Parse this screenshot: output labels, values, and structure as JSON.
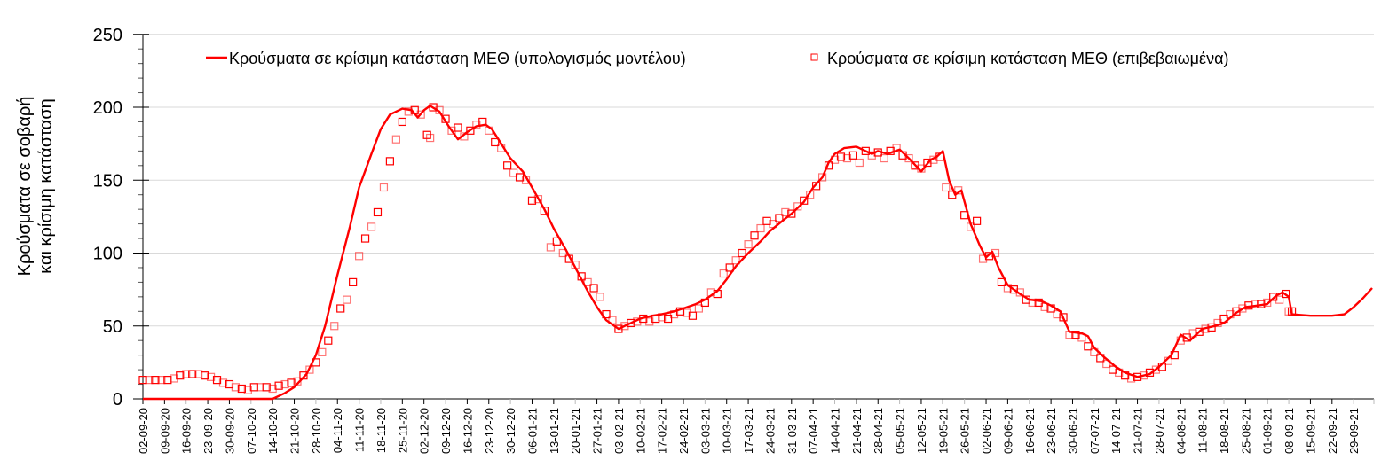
{
  "chart_data": {
    "type": "line",
    "title": "",
    "xlabel": "",
    "ylabel": "Κρούσματα σε σοβαρή και κρίσιμη κατάσταση",
    "ylabel_lines": [
      "Κρούσματα σε σοβαρή",
      "και κρίσιμη κατάσταση"
    ],
    "ylim": [
      0,
      250
    ],
    "yticks": [
      0,
      50,
      100,
      150,
      200,
      250
    ],
    "y_minor_step": 10,
    "grid": "horizontal major",
    "legend_position": "top inside",
    "x_unit": "days since 02-09-20",
    "xlim_days": [
      0,
      399
    ],
    "x_tick_step_days": 7,
    "x_tick_labels": [
      "02-09-20",
      "09-09-20",
      "16-09-20",
      "23-09-20",
      "30-09-20",
      "07-10-20",
      "14-10-20",
      "21-10-20",
      "28-10-20",
      "04-11-20",
      "11-11-20",
      "18-11-20",
      "25-11-20",
      "02-12-20",
      "09-12-20",
      "16-12-20",
      "23-12-20",
      "30-12-20",
      "06-01-21",
      "13-01-21",
      "20-01-21",
      "27-01-21",
      "03-02-21",
      "10-02-21",
      "17-02-21",
      "24-02-21",
      "03-03-21",
      "10-03-21",
      "17-03-21",
      "24-03-21",
      "31-03-21",
      "07-04-21",
      "14-04-21",
      "21-04-21",
      "28-04-21",
      "05-05-21",
      "12-05-21",
      "19-05-21",
      "26-05-21",
      "02-06-21",
      "09-06-21",
      "16-06-21",
      "23-06-21",
      "30-06-21",
      "07-07-21",
      "14-07-21",
      "21-07-21",
      "28-07-21",
      "04-08-21",
      "11-08-21",
      "18-08-21",
      "25-08-21",
      "01-09-21",
      "08-09-21",
      "15-09-21",
      "22-09-21",
      "29-09-21"
    ],
    "series": [
      {
        "name": "Κρούσματα σε κρίσιμη κατάσταση ΜΕΘ (υπολογισμός μοντέλου)",
        "style": "line",
        "color": "#ff0000",
        "points": [
          [
            0,
            0
          ],
          [
            42,
            0
          ],
          [
            46,
            4
          ],
          [
            49,
            8
          ],
          [
            53,
            17
          ],
          [
            56,
            30
          ],
          [
            59,
            50
          ],
          [
            63,
            85
          ],
          [
            67,
            118
          ],
          [
            70,
            145
          ],
          [
            74,
            168
          ],
          [
            77,
            185
          ],
          [
            80,
            195
          ],
          [
            84,
            199
          ],
          [
            87,
            198
          ],
          [
            89,
            193
          ],
          [
            91,
            198
          ],
          [
            93,
            201
          ],
          [
            96,
            197
          ],
          [
            99,
            187
          ],
          [
            102,
            178
          ],
          [
            105,
            183
          ],
          [
            108,
            187
          ],
          [
            111,
            188
          ],
          [
            113,
            185
          ],
          [
            116,
            175
          ],
          [
            119,
            165
          ],
          [
            123,
            156
          ],
          [
            126,
            145
          ],
          [
            130,
            130
          ],
          [
            133,
            117
          ],
          [
            137,
            102
          ],
          [
            140,
            90
          ],
          [
            144,
            74
          ],
          [
            147,
            63
          ],
          [
            150,
            54
          ],
          [
            154,
            48
          ],
          [
            157,
            51
          ],
          [
            161,
            55
          ],
          [
            165,
            57
          ],
          [
            168,
            58
          ],
          [
            172,
            60
          ],
          [
            175,
            62
          ],
          [
            179,
            65
          ],
          [
            182,
            68
          ],
          [
            186,
            74
          ],
          [
            189,
            82
          ],
          [
            192,
            91
          ],
          [
            196,
            100
          ],
          [
            200,
            108
          ],
          [
            203,
            115
          ],
          [
            207,
            122
          ],
          [
            210,
            127
          ],
          [
            214,
            135
          ],
          [
            217,
            145
          ],
          [
            220,
            152
          ],
          [
            222,
            162
          ],
          [
            224,
            168
          ],
          [
            227,
            172
          ],
          [
            231,
            173
          ],
          [
            234,
            170
          ],
          [
            236,
            168
          ],
          [
            238,
            170
          ],
          [
            241,
            168
          ],
          [
            245,
            171
          ],
          [
            248,
            165
          ],
          [
            252,
            156
          ],
          [
            255,
            164
          ],
          [
            257,
            166
          ],
          [
            259,
            170
          ],
          [
            261,
            150
          ],
          [
            263,
            140
          ],
          [
            265,
            143
          ],
          [
            268,
            120
          ],
          [
            271,
            105
          ],
          [
            273,
            97
          ],
          [
            275,
            101
          ],
          [
            277,
            90
          ],
          [
            280,
            78
          ],
          [
            284,
            72
          ],
          [
            287,
            68
          ],
          [
            291,
            67
          ],
          [
            294,
            64
          ],
          [
            297,
            60
          ],
          [
            300,
            46
          ],
          [
            304,
            45
          ],
          [
            306,
            43
          ],
          [
            308,
            35
          ],
          [
            311,
            29
          ],
          [
            315,
            22
          ],
          [
            318,
            18
          ],
          [
            322,
            15
          ],
          [
            326,
            17
          ],
          [
            329,
            22
          ],
          [
            333,
            30
          ],
          [
            336,
            44
          ],
          [
            339,
            40
          ],
          [
            343,
            48
          ],
          [
            347,
            50
          ],
          [
            350,
            52
          ],
          [
            354,
            59
          ],
          [
            357,
            63
          ],
          [
            361,
            64
          ],
          [
            364,
            65
          ],
          [
            367,
            71
          ],
          [
            369,
            73
          ],
          [
            371,
            70
          ],
          [
            372,
            58
          ],
          [
            378,
            57
          ],
          [
            385,
            57
          ],
          [
            389,
            58
          ],
          [
            392,
            63
          ],
          [
            395,
            69
          ],
          [
            398,
            76
          ]
        ]
      },
      {
        "name": "Κρούσματα σε κρίσιμη κατάσταση ΜΕΘ (επιβεβαιωμένα)",
        "style": "open-square markers",
        "color": "#ff0000",
        "points": [
          [
            0,
            13
          ],
          [
            2,
            13
          ],
          [
            4,
            13
          ],
          [
            6,
            13
          ],
          [
            8,
            13
          ],
          [
            10,
            14
          ],
          [
            12,
            16
          ],
          [
            14,
            17
          ],
          [
            16,
            17
          ],
          [
            18,
            17
          ],
          [
            20,
            16
          ],
          [
            22,
            15
          ],
          [
            24,
            13
          ],
          [
            26,
            11
          ],
          [
            28,
            10
          ],
          [
            30,
            8
          ],
          [
            32,
            7
          ],
          [
            34,
            6
          ],
          [
            36,
            8
          ],
          [
            38,
            8
          ],
          [
            40,
            8
          ],
          [
            42,
            7
          ],
          [
            44,
            9
          ],
          [
            46,
            10
          ],
          [
            48,
            11
          ],
          [
            50,
            12
          ],
          [
            52,
            16
          ],
          [
            54,
            20
          ],
          [
            56,
            25
          ],
          [
            58,
            32
          ],
          [
            60,
            40
          ],
          [
            62,
            50
          ],
          [
            64,
            62
          ],
          [
            66,
            68
          ],
          [
            68,
            80
          ],
          [
            70,
            98
          ],
          [
            72,
            110
          ],
          [
            74,
            118
          ],
          [
            76,
            128
          ],
          [
            78,
            145
          ],
          [
            80,
            163
          ],
          [
            82,
            178
          ],
          [
            84,
            190
          ],
          [
            86,
            197
          ],
          [
            88,
            198
          ],
          [
            90,
            195
          ],
          [
            92,
            181
          ],
          [
            93,
            179
          ],
          [
            94,
            200
          ],
          [
            96,
            198
          ],
          [
            98,
            192
          ],
          [
            100,
            184
          ],
          [
            102,
            186
          ],
          [
            104,
            180
          ],
          [
            106,
            184
          ],
          [
            108,
            188
          ],
          [
            110,
            190
          ],
          [
            112,
            184
          ],
          [
            114,
            176
          ],
          [
            116,
            172
          ],
          [
            118,
            160
          ],
          [
            120,
            155
          ],
          [
            122,
            152
          ],
          [
            124,
            150
          ],
          [
            126,
            136
          ],
          [
            128,
            137
          ],
          [
            130,
            129
          ],
          [
            132,
            104
          ],
          [
            134,
            108
          ],
          [
            136,
            100
          ],
          [
            138,
            96
          ],
          [
            140,
            92
          ],
          [
            142,
            84
          ],
          [
            144,
            80
          ],
          [
            146,
            76
          ],
          [
            148,
            70
          ],
          [
            150,
            58
          ],
          [
            152,
            54
          ],
          [
            154,
            48
          ],
          [
            156,
            50
          ],
          [
            158,
            52
          ],
          [
            160,
            53
          ],
          [
            162,
            55
          ],
          [
            164,
            53
          ],
          [
            166,
            55
          ],
          [
            168,
            56
          ],
          [
            170,
            55
          ],
          [
            172,
            58
          ],
          [
            174,
            60
          ],
          [
            176,
            59
          ],
          [
            178,
            57
          ],
          [
            180,
            62
          ],
          [
            182,
            66
          ],
          [
            184,
            73
          ],
          [
            186,
            72
          ],
          [
            188,
            86
          ],
          [
            190,
            90
          ],
          [
            192,
            95
          ],
          [
            194,
            100
          ],
          [
            196,
            106
          ],
          [
            198,
            112
          ],
          [
            200,
            117
          ],
          [
            202,
            122
          ],
          [
            204,
            120
          ],
          [
            206,
            124
          ],
          [
            208,
            128
          ],
          [
            210,
            127
          ],
          [
            212,
            132
          ],
          [
            214,
            136
          ],
          [
            216,
            140
          ],
          [
            218,
            146
          ],
          [
            220,
            152
          ],
          [
            222,
            160
          ],
          [
            224,
            164
          ],
          [
            226,
            166
          ],
          [
            228,
            165
          ],
          [
            230,
            167
          ],
          [
            232,
            162
          ],
          [
            234,
            170
          ],
          [
            236,
            167
          ],
          [
            238,
            169
          ],
          [
            240,
            165
          ],
          [
            242,
            170
          ],
          [
            244,
            172
          ],
          [
            246,
            167
          ],
          [
            248,
            165
          ],
          [
            250,
            160
          ],
          [
            252,
            158
          ],
          [
            254,
            162
          ],
          [
            256,
            164
          ],
          [
            258,
            166
          ],
          [
            260,
            145
          ],
          [
            262,
            140
          ],
          [
            264,
            143
          ],
          [
            266,
            126
          ],
          [
            268,
            118
          ],
          [
            270,
            122
          ],
          [
            272,
            96
          ],
          [
            274,
            98
          ],
          [
            276,
            100
          ],
          [
            278,
            80
          ],
          [
            280,
            76
          ],
          [
            282,
            75
          ],
          [
            284,
            73
          ],
          [
            286,
            68
          ],
          [
            288,
            66
          ],
          [
            290,
            66
          ],
          [
            292,
            63
          ],
          [
            294,
            62
          ],
          [
            296,
            58
          ],
          [
            298,
            56
          ],
          [
            300,
            44
          ],
          [
            302,
            44
          ],
          [
            304,
            42
          ],
          [
            306,
            36
          ],
          [
            308,
            32
          ],
          [
            310,
            28
          ],
          [
            312,
            24
          ],
          [
            314,
            20
          ],
          [
            316,
            18
          ],
          [
            318,
            16
          ],
          [
            320,
            14
          ],
          [
            322,
            15
          ],
          [
            324,
            16
          ],
          [
            326,
            18
          ],
          [
            328,
            20
          ],
          [
            330,
            22
          ],
          [
            332,
            26
          ],
          [
            334,
            30
          ],
          [
            336,
            40
          ],
          [
            338,
            42
          ],
          [
            340,
            45
          ],
          [
            342,
            46
          ],
          [
            344,
            48
          ],
          [
            346,
            49
          ],
          [
            348,
            52
          ],
          [
            350,
            55
          ],
          [
            352,
            58
          ],
          [
            354,
            60
          ],
          [
            356,
            62
          ],
          [
            358,
            64
          ],
          [
            360,
            65
          ],
          [
            362,
            65
          ],
          [
            364,
            66
          ],
          [
            366,
            70
          ],
          [
            368,
            68
          ],
          [
            370,
            72
          ],
          [
            371,
            60
          ],
          [
            372,
            60
          ]
        ]
      }
    ]
  },
  "legend": {
    "model_label": "Κρούσματα σε κρίσιμη κατάσταση ΜΕΘ (υπολογισμός μοντέλου)",
    "confirmed_label": "Κρούσματα σε κρίσιμη κατάσταση ΜΕΘ (επιβεβαιωμένα)"
  },
  "colors": {
    "series": "#ff0000",
    "grid": "#d9d9d9",
    "axis": "#000000"
  }
}
